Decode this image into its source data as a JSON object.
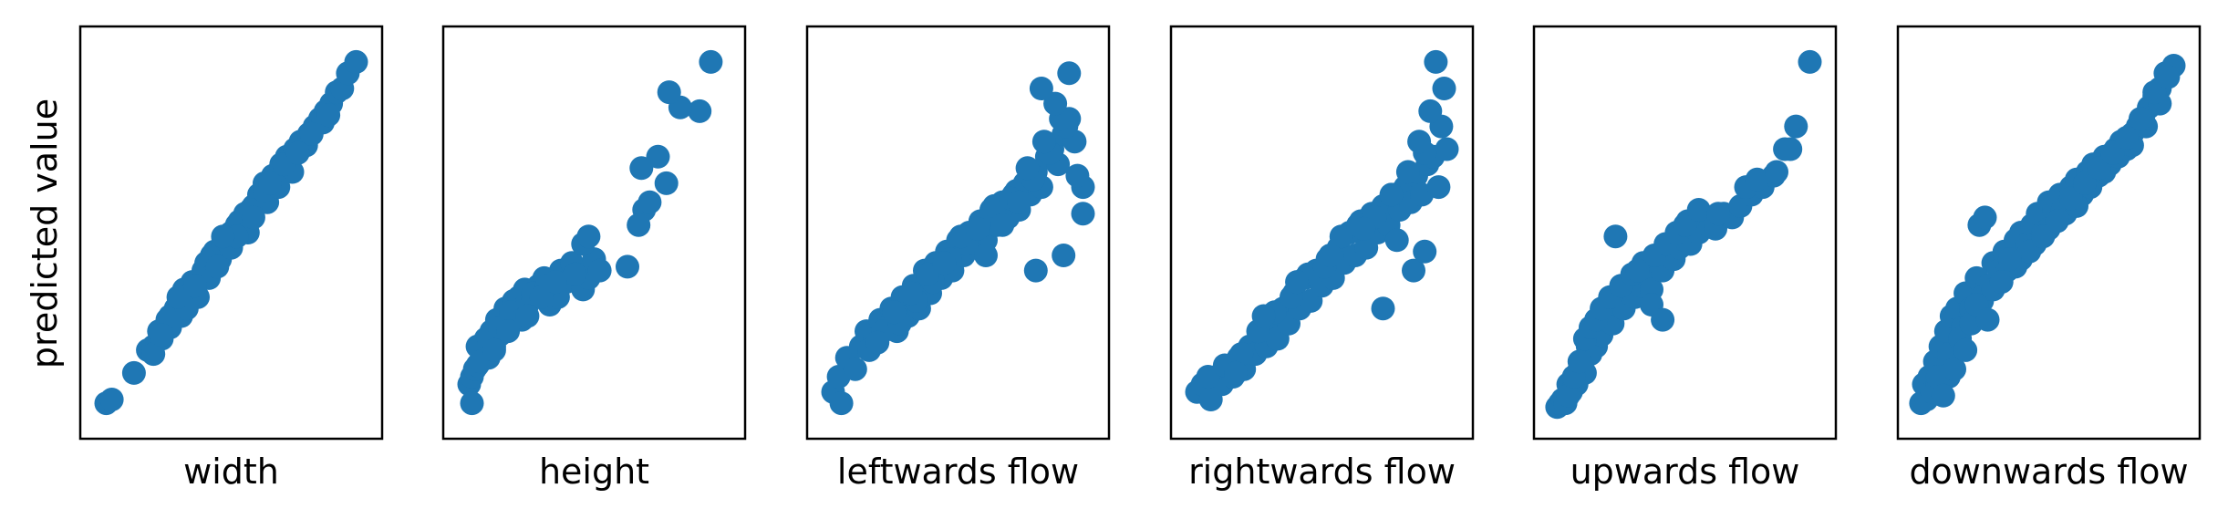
{
  "figure": {
    "ylabel": "predicted value",
    "point_color": "#1f77b4"
  },
  "chart_data": [
    {
      "type": "scatter",
      "xlabel": "width",
      "ylabel": "predicted value",
      "ticks": "none",
      "grid": false,
      "x": [
        0.05,
        0.07,
        0.15,
        0.2,
        0.22,
        0.24,
        0.25,
        0.27,
        0.28,
        0.3,
        0.32,
        0.33,
        0.35,
        0.36,
        0.38,
        0.4,
        0.41,
        0.42,
        0.43,
        0.44,
        0.46,
        0.47,
        0.48,
        0.5,
        0.5,
        0.52,
        0.53,
        0.55,
        0.56,
        0.58,
        0.6,
        0.62,
        0.63,
        0.65,
        0.66,
        0.68,
        0.7,
        0.72,
        0.73,
        0.75,
        0.77,
        0.8,
        0.82,
        0.84,
        0.86,
        0.88,
        0.9,
        0.92,
        0.95,
        0.22,
        0.28,
        0.34,
        0.45,
        0.52,
        0.57,
        0.62,
        0.67,
        0.71,
        0.78,
        0.83,
        0.25,
        0.31,
        0.37,
        0.47,
        0.58,
        0.64,
        0.69,
        0.74,
        0.79,
        0.85
      ],
      "y": [
        0.05,
        0.06,
        0.13,
        0.19,
        0.2,
        0.24,
        0.22,
        0.27,
        0.25,
        0.3,
        0.28,
        0.35,
        0.32,
        0.37,
        0.33,
        0.4,
        0.42,
        0.38,
        0.44,
        0.45,
        0.43,
        0.47,
        0.48,
        0.5,
        0.46,
        0.52,
        0.53,
        0.55,
        0.5,
        0.57,
        0.6,
        0.63,
        0.58,
        0.65,
        0.64,
        0.68,
        0.7,
        0.66,
        0.72,
        0.74,
        0.73,
        0.78,
        0.8,
        0.82,
        0.84,
        0.87,
        0.88,
        0.92,
        0.95,
        0.18,
        0.28,
        0.3,
        0.41,
        0.49,
        0.56,
        0.61,
        0.62,
        0.69,
        0.76,
        0.79,
        0.23,
        0.33,
        0.36,
        0.49,
        0.54,
        0.63,
        0.68,
        0.71,
        0.76,
        0.81
      ]
    },
    {
      "type": "scatter",
      "xlabel": "height",
      "ylabel": "",
      "ticks": "none",
      "grid": false,
      "x": [
        0.05,
        0.06,
        0.07,
        0.08,
        0.09,
        0.1,
        0.11,
        0.12,
        0.13,
        0.14,
        0.15,
        0.16,
        0.17,
        0.18,
        0.19,
        0.2,
        0.21,
        0.22,
        0.23,
        0.24,
        0.25,
        0.26,
        0.28,
        0.3,
        0.32,
        0.34,
        0.36,
        0.38,
        0.4,
        0.42,
        0.44,
        0.46,
        0.48,
        0.5,
        0.52,
        0.08,
        0.12,
        0.16,
        0.2,
        0.24,
        0.28,
        0.33,
        0.37,
        0.43,
        0.09,
        0.14,
        0.19,
        0.26,
        0.31,
        0.36,
        0.46,
        0.48,
        0.62,
        0.68,
        0.67,
        0.73,
        0.76,
        0.7,
        0.66,
        0.92,
        0.88,
        0.81,
        0.77,
        0.06
      ],
      "y": [
        0.1,
        0.12,
        0.14,
        0.15,
        0.2,
        0.18,
        0.22,
        0.17,
        0.24,
        0.2,
        0.27,
        0.23,
        0.25,
        0.3,
        0.26,
        0.28,
        0.32,
        0.27,
        0.33,
        0.3,
        0.35,
        0.31,
        0.33,
        0.36,
        0.38,
        0.31,
        0.35,
        0.4,
        0.37,
        0.42,
        0.39,
        0.35,
        0.38,
        0.43,
        0.4,
        0.2,
        0.22,
        0.25,
        0.29,
        0.27,
        0.34,
        0.36,
        0.33,
        0.39,
        0.16,
        0.19,
        0.24,
        0.28,
        0.33,
        0.37,
        0.47,
        0.49,
        0.41,
        0.56,
        0.67,
        0.7,
        0.63,
        0.58,
        0.52,
        0.95,
        0.82,
        0.83,
        0.87,
        0.05
      ]
    },
    {
      "type": "scatter",
      "xlabel": "leftwards flow",
      "ylabel": "",
      "ticks": "none",
      "grid": false,
      "x": [
        0.05,
        0.07,
        0.08,
        0.1,
        0.13,
        0.15,
        0.17,
        0.2,
        0.22,
        0.24,
        0.26,
        0.28,
        0.3,
        0.32,
        0.34,
        0.36,
        0.38,
        0.4,
        0.42,
        0.44,
        0.46,
        0.48,
        0.5,
        0.52,
        0.54,
        0.56,
        0.58,
        0.6,
        0.62,
        0.64,
        0.66,
        0.68,
        0.7,
        0.72,
        0.74,
        0.76,
        0.78,
        0.8,
        0.82,
        0.84,
        0.86,
        0.88,
        0.9,
        0.92,
        0.95,
        0.18,
        0.23,
        0.29,
        0.35,
        0.41,
        0.47,
        0.53,
        0.59,
        0.65,
        0.71,
        0.77,
        0.83,
        0.89,
        0.21,
        0.27,
        0.33,
        0.39,
        0.45,
        0.51,
        0.57,
        0.63,
        0.69,
        0.75,
        0.81,
        0.87,
        0.93,
        0.85,
        0.9,
        0.8,
        0.72,
        0.66,
        0.6,
        0.95,
        0.88,
        0.78
      ],
      "y": [
        0.08,
        0.12,
        0.05,
        0.17,
        0.14,
        0.2,
        0.24,
        0.22,
        0.27,
        0.25,
        0.3,
        0.24,
        0.33,
        0.28,
        0.36,
        0.3,
        0.4,
        0.34,
        0.42,
        0.38,
        0.45,
        0.4,
        0.48,
        0.44,
        0.5,
        0.46,
        0.53,
        0.48,
        0.56,
        0.52,
        0.58,
        0.54,
        0.6,
        0.56,
        0.63,
        0.6,
        0.66,
        0.62,
        0.7,
        0.72,
        0.68,
        0.76,
        0.8,
        0.74,
        0.62,
        0.19,
        0.24,
        0.26,
        0.32,
        0.37,
        0.43,
        0.47,
        0.52,
        0.55,
        0.61,
        0.64,
        0.71,
        0.78,
        0.21,
        0.29,
        0.34,
        0.39,
        0.42,
        0.49,
        0.51,
        0.57,
        0.59,
        0.67,
        0.74,
        0.8,
        0.65,
        0.84,
        0.92,
        0.88,
        0.58,
        0.52,
        0.44,
        0.55,
        0.44,
        0.4
      ]
    },
    {
      "type": "scatter",
      "xlabel": "rightwards flow",
      "ylabel": "",
      "ticks": "none",
      "grid": false,
      "x": [
        0.05,
        0.07,
        0.1,
        0.12,
        0.14,
        0.16,
        0.18,
        0.2,
        0.22,
        0.24,
        0.26,
        0.28,
        0.3,
        0.32,
        0.34,
        0.36,
        0.38,
        0.4,
        0.42,
        0.44,
        0.46,
        0.48,
        0.5,
        0.52,
        0.54,
        0.56,
        0.58,
        0.6,
        0.62,
        0.64,
        0.66,
        0.68,
        0.7,
        0.72,
        0.74,
        0.76,
        0.78,
        0.8,
        0.82,
        0.84,
        0.86,
        0.88,
        0.9,
        0.92,
        0.95,
        0.09,
        0.15,
        0.21,
        0.27,
        0.33,
        0.39,
        0.45,
        0.51,
        0.57,
        0.63,
        0.69,
        0.75,
        0.81,
        0.87,
        0.93,
        0.19,
        0.29,
        0.41,
        0.53,
        0.65,
        0.77,
        0.85,
        0.89,
        0.91,
        0.94,
        0.83,
        0.87,
        0.72
      ],
      "y": [
        0.08,
        0.1,
        0.06,
        0.12,
        0.1,
        0.14,
        0.12,
        0.17,
        0.14,
        0.2,
        0.18,
        0.24,
        0.2,
        0.27,
        0.22,
        0.3,
        0.26,
        0.34,
        0.3,
        0.38,
        0.32,
        0.4,
        0.36,
        0.43,
        0.38,
        0.46,
        0.42,
        0.5,
        0.44,
        0.53,
        0.46,
        0.55,
        0.5,
        0.57,
        0.52,
        0.6,
        0.56,
        0.62,
        0.58,
        0.65,
        0.6,
        0.68,
        0.7,
        0.62,
        0.72,
        0.12,
        0.15,
        0.18,
        0.24,
        0.29,
        0.33,
        0.39,
        0.41,
        0.49,
        0.52,
        0.54,
        0.6,
        0.66,
        0.71,
        0.78,
        0.13,
        0.28,
        0.37,
        0.44,
        0.51,
        0.48,
        0.74,
        0.82,
        0.95,
        0.88,
        0.4,
        0.45,
        0.3
      ]
    },
    {
      "type": "scatter",
      "xlabel": "upwards flow",
      "ylabel": "",
      "ticks": "none",
      "grid": false,
      "x": [
        0.04,
        0.05,
        0.06,
        0.07,
        0.08,
        0.09,
        0.1,
        0.11,
        0.12,
        0.13,
        0.14,
        0.15,
        0.16,
        0.17,
        0.18,
        0.19,
        0.2,
        0.22,
        0.24,
        0.26,
        0.28,
        0.3,
        0.32,
        0.34,
        0.36,
        0.38,
        0.4,
        0.42,
        0.44,
        0.46,
        0.48,
        0.5,
        0.52,
        0.55,
        0.58,
        0.61,
        0.64,
        0.67,
        0.7,
        0.74,
        0.78,
        0.82,
        0.08,
        0.1,
        0.12,
        0.14,
        0.16,
        0.18,
        0.2,
        0.23,
        0.27,
        0.31,
        0.35,
        0.39,
        0.43,
        0.47,
        0.51,
        0.25,
        0.33,
        0.38,
        0.42,
        0.5,
        0.55,
        0.62,
        0.72,
        0.76,
        0.86,
        0.9,
        0.95,
        0.88,
        0.83
      ],
      "y": [
        0.04,
        0.05,
        0.06,
        0.05,
        0.1,
        0.08,
        0.12,
        0.1,
        0.14,
        0.16,
        0.13,
        0.2,
        0.18,
        0.22,
        0.2,
        0.25,
        0.23,
        0.28,
        0.26,
        0.31,
        0.3,
        0.34,
        0.33,
        0.36,
        0.38,
        0.35,
        0.41,
        0.4,
        0.44,
        0.43,
        0.46,
        0.48,
        0.47,
        0.5,
        0.52,
        0.51,
        0.55,
        0.54,
        0.57,
        0.6,
        0.62,
        0.65,
        0.07,
        0.12,
        0.16,
        0.22,
        0.25,
        0.27,
        0.3,
        0.33,
        0.36,
        0.39,
        0.42,
        0.44,
        0.47,
        0.5,
        0.53,
        0.49,
        0.4,
        0.31,
        0.27,
        0.52,
        0.56,
        0.55,
        0.62,
        0.64,
        0.72,
        0.78,
        0.95,
        0.72,
        0.66
      ]
    },
    {
      "type": "scatter",
      "xlabel": "downwards flow",
      "ylabel": "",
      "ticks": "none",
      "grid": false,
      "x": [
        0.04,
        0.05,
        0.06,
        0.07,
        0.08,
        0.09,
        0.1,
        0.11,
        0.12,
        0.13,
        0.14,
        0.15,
        0.16,
        0.17,
        0.18,
        0.19,
        0.2,
        0.22,
        0.24,
        0.26,
        0.28,
        0.3,
        0.32,
        0.34,
        0.36,
        0.38,
        0.4,
        0.42,
        0.44,
        0.46,
        0.48,
        0.5,
        0.52,
        0.54,
        0.56,
        0.58,
        0.6,
        0.62,
        0.64,
        0.66,
        0.68,
        0.7,
        0.72,
        0.74,
        0.76,
        0.78,
        0.8,
        0.82,
        0.84,
        0.86,
        0.88,
        0.9,
        0.92,
        0.95,
        0.1,
        0.14,
        0.18,
        0.22,
        0.26,
        0.3,
        0.35,
        0.4,
        0.45,
        0.5,
        0.55,
        0.6,
        0.65,
        0.7,
        0.75,
        0.8,
        0.85,
        0.9,
        0.12,
        0.16,
        0.2,
        0.24,
        0.28,
        0.33,
        0.38,
        0.43,
        0.48,
        0.53,
        0.58,
        0.63,
        0.68,
        0.73,
        0.78,
        0.83,
        0.88,
        0.93,
        0.25,
        0.27,
        0.36
      ],
      "y": [
        0.05,
        0.1,
        0.06,
        0.12,
        0.08,
        0.16,
        0.1,
        0.2,
        0.14,
        0.24,
        0.12,
        0.28,
        0.18,
        0.3,
        0.2,
        0.25,
        0.34,
        0.3,
        0.38,
        0.32,
        0.36,
        0.42,
        0.4,
        0.45,
        0.43,
        0.48,
        0.5,
        0.47,
        0.52,
        0.55,
        0.5,
        0.58,
        0.56,
        0.6,
        0.55,
        0.62,
        0.64,
        0.6,
        0.66,
        0.68,
        0.65,
        0.7,
        0.68,
        0.72,
        0.74,
        0.72,
        0.76,
        0.78,
        0.8,
        0.83,
        0.86,
        0.88,
        0.92,
        0.94,
        0.12,
        0.18,
        0.22,
        0.26,
        0.33,
        0.35,
        0.4,
        0.43,
        0.47,
        0.51,
        0.56,
        0.57,
        0.62,
        0.66,
        0.7,
        0.73,
        0.78,
        0.84,
        0.07,
        0.14,
        0.19,
        0.31,
        0.27,
        0.37,
        0.41,
        0.45,
        0.49,
        0.53,
        0.59,
        0.63,
        0.67,
        0.71,
        0.75,
        0.8,
        0.87,
        0.91,
        0.52,
        0.54,
        0.43
      ]
    }
  ]
}
